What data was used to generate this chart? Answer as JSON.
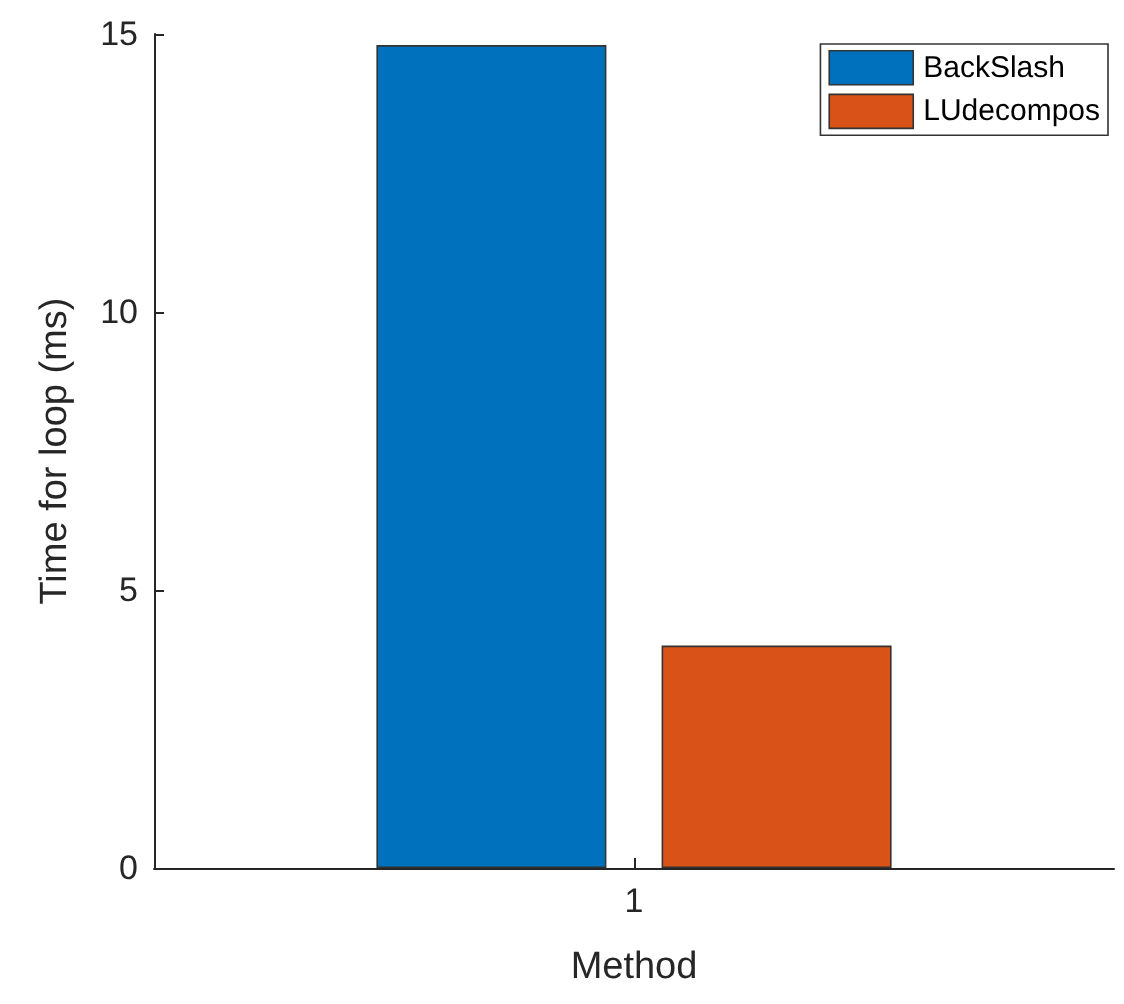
{
  "chart_data": {
    "type": "bar",
    "xlabel": "Method",
    "ylabel": "Time for loop (ms)",
    "categories": [
      "1"
    ],
    "series": [
      {
        "name": "BackSlash",
        "color": "#0072bd",
        "values": [
          14.8
        ]
      },
      {
        "name": "LUdecompos",
        "color": "#d95319",
        "values": [
          4.0
        ]
      }
    ],
    "ylim": [
      0,
      15
    ],
    "yticks": [
      0,
      5,
      10,
      15
    ],
    "grid": false,
    "legend": "top right"
  }
}
